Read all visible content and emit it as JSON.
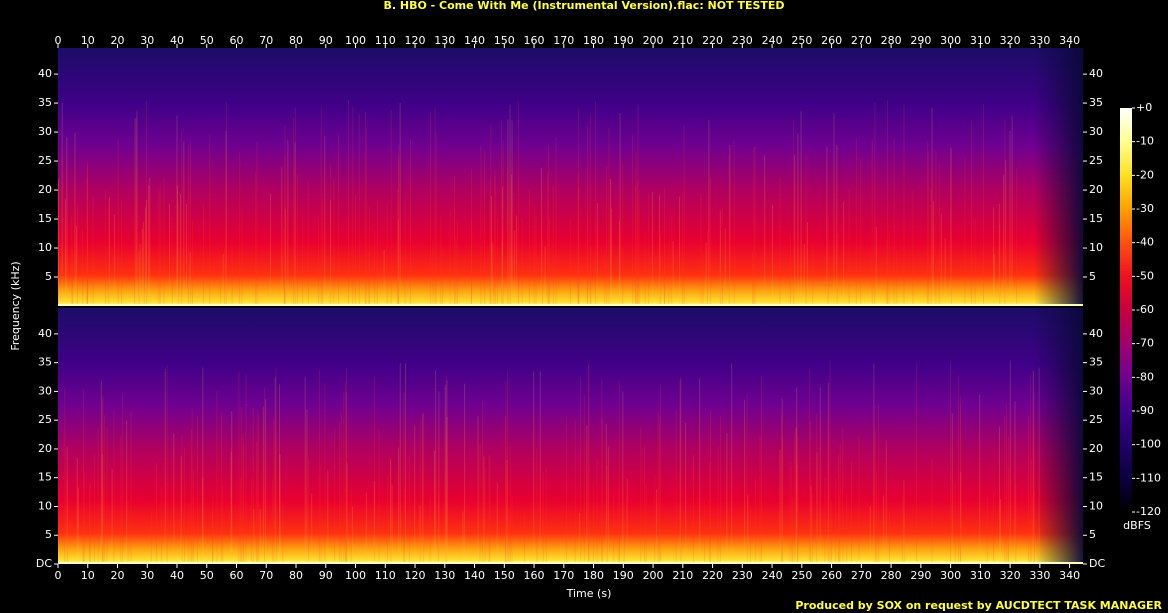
{
  "chart_data": {
    "type": "spectrogram",
    "title": "B. HBO - Come With Me (Instrumental Version).flac: NOT TESTED",
    "xlabel": "Time (s)",
    "ylabel": "Frequency (kHz)",
    "footer": "Produced by SOX on request by AUCDTECT TASK MANAGER",
    "xlim": [
      0,
      344.5
    ],
    "xticks": [
      0,
      10,
      20,
      30,
      40,
      50,
      60,
      70,
      80,
      90,
      100,
      110,
      120,
      130,
      140,
      150,
      160,
      170,
      180,
      190,
      200,
      210,
      220,
      230,
      240,
      250,
      260,
      270,
      280,
      290,
      300,
      310,
      320,
      330,
      340
    ],
    "channels": [
      {
        "ylim": [
          0,
          44.5
        ],
        "yticks": [
          5,
          10,
          15,
          20,
          25,
          30,
          35,
          40
        ]
      },
      {
        "ylim": [
          0,
          44.5
        ],
        "yticks": [
          {
            "value": 0,
            "label": "DC"
          },
          5,
          10,
          15,
          20,
          25,
          30,
          35,
          40
        ]
      }
    ],
    "colorbar": {
      "label": "dBFS",
      "lim": [
        -120,
        0
      ],
      "ticks": [
        {
          "value": 0,
          "label": "+0"
        },
        -10,
        -20,
        -30,
        -40,
        -50,
        -60,
        -70,
        -80,
        -90,
        -100,
        -110,
        -120
      ],
      "colors": [
        "#ffffff",
        "#ffff90",
        "#ffe020",
        "#ffa000",
        "#ff5010",
        "#f01020",
        "#c80040",
        "#a00070",
        "#700090",
        "#40008c",
        "#200068",
        "#0c0040",
        "#000000"
      ]
    }
  }
}
